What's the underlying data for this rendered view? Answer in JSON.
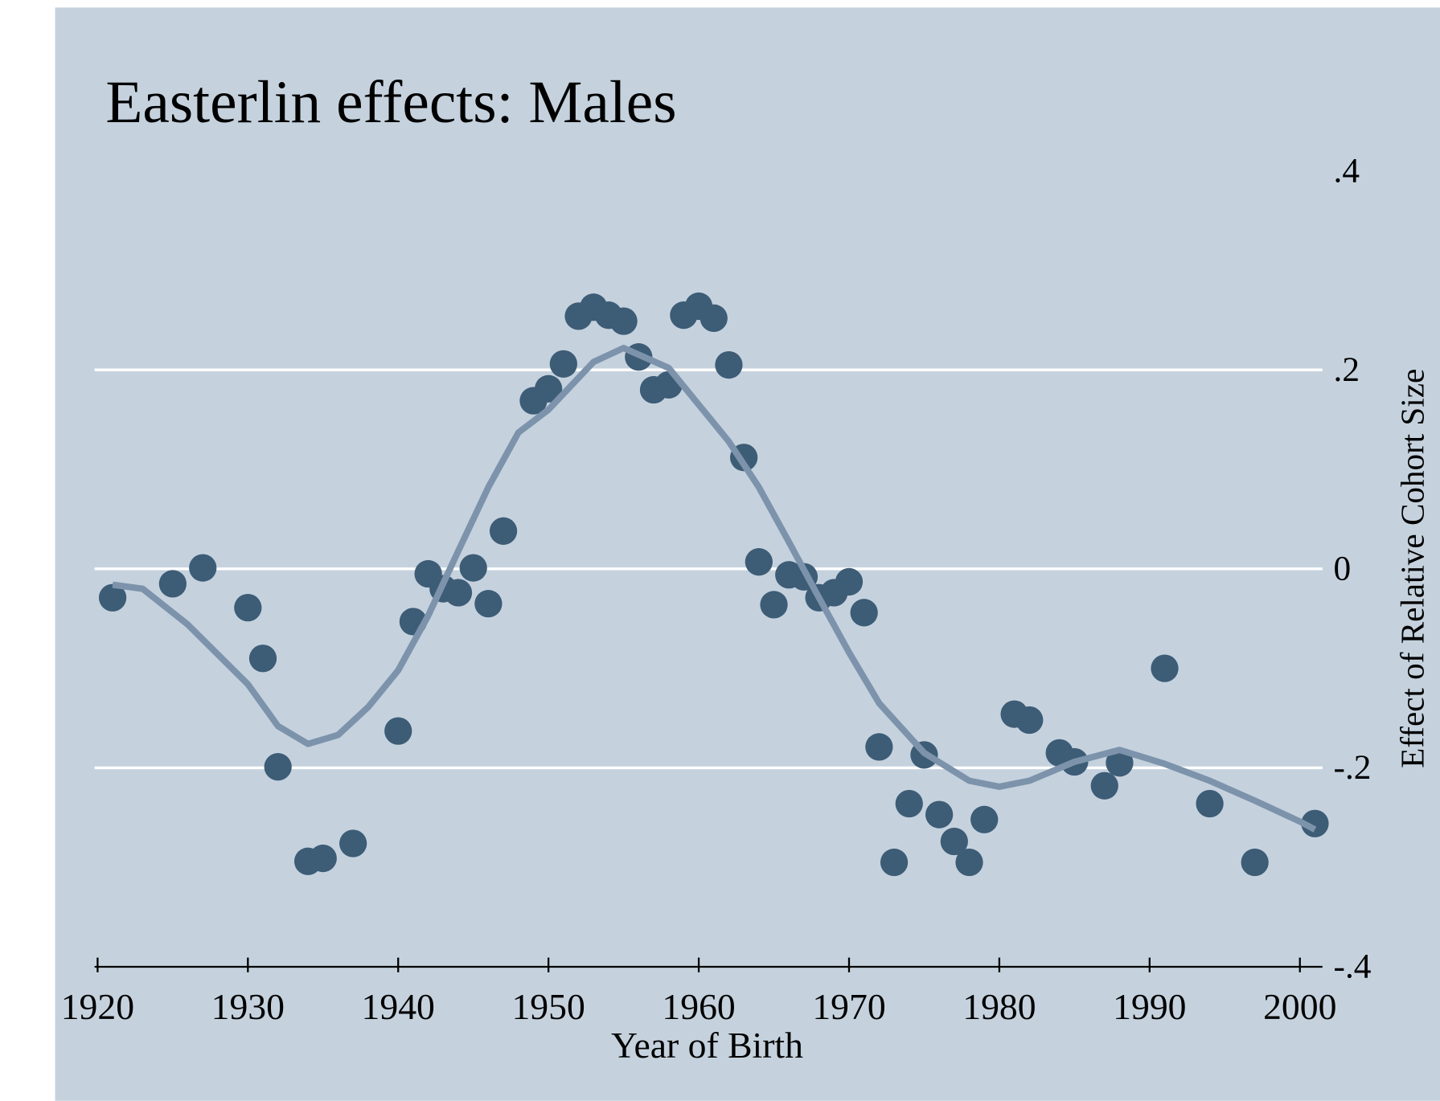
{
  "chart_data": {
    "type": "scatter",
    "title": "Easterlin effects: Males",
    "x_label": "Year of Birth",
    "y_label": "Effect of Relative Cohort Size",
    "xlim": [
      1919.8,
      2001.5
    ],
    "ylim": [
      -0.4,
      0.4
    ],
    "xticks": [
      1920,
      1930,
      1940,
      1950,
      1960,
      1970,
      1980,
      1990,
      2000
    ],
    "yticks": [
      {
        "value": 0.4,
        "label": ".4"
      },
      {
        "value": 0.2,
        "label": ".2"
      },
      0,
      {
        "value": -0.2,
        "label": "-.2"
      },
      {
        "value": -0.4,
        "label": "-.4"
      }
    ],
    "grid": true,
    "series": [
      {
        "type": "scatter",
        "color": "#3d5c76",
        "x": [
          1921,
          1925,
          1927,
          1930,
          1931,
          1932,
          1934,
          1935,
          1937,
          1940,
          1941,
          1942,
          1943,
          1944,
          1945,
          1946,
          1947,
          1949,
          1950,
          1951,
          1952,
          1953,
          1954,
          1955,
          1956,
          1957,
          1958,
          1959,
          1960,
          1961,
          1962,
          1963,
          1964,
          1965,
          1966,
          1967,
          1968,
          1969,
          1970,
          1971,
          1972,
          1973,
          1974,
          1975,
          1976,
          1977,
          1978,
          1979,
          1981,
          1982,
          1984,
          1985,
          1987,
          1988,
          1991,
          1994,
          1997,
          2001
        ],
        "values": [
          -0.029,
          -0.015,
          0.001,
          -0.039,
          -0.09,
          -0.199,
          -0.294,
          -0.291,
          -0.276,
          -0.163,
          -0.053,
          -0.005,
          -0.02,
          -0.024,
          0.001,
          -0.035,
          0.038,
          0.169,
          0.181,
          0.206,
          0.254,
          0.263,
          0.255,
          0.249,
          0.213,
          0.18,
          0.185,
          0.255,
          0.264,
          0.252,
          0.205,
          0.112,
          0.007,
          -0.036,
          -0.006,
          -0.008,
          -0.029,
          -0.024,
          -0.013,
          -0.044,
          -0.179,
          -0.295,
          -0.236,
          -0.187,
          -0.247,
          -0.274,
          -0.295,
          -0.252,
          -0.146,
          -0.152,
          -0.185,
          -0.194,
          -0.218,
          -0.195,
          -0.1,
          -0.236,
          -0.295,
          -0.256
        ]
      },
      {
        "type": "line",
        "color": "#7c93ab",
        "x": [
          1921,
          1923,
          1926,
          1930,
          1932,
          1934,
          1936,
          1938,
          1940,
          1942,
          1944,
          1946,
          1948,
          1950,
          1953,
          1955,
          1958,
          1960,
          1962,
          1964,
          1966,
          1968,
          1970,
          1972,
          1975,
          1978,
          1980,
          1982,
          1985,
          1988,
          1991,
          1994,
          1997,
          2000,
          2001
        ],
        "values": [
          -0.016,
          -0.02,
          -0.056,
          -0.116,
          -0.158,
          -0.176,
          -0.167,
          -0.139,
          -0.102,
          -0.047,
          0.018,
          0.082,
          0.137,
          0.16,
          0.208,
          0.222,
          0.202,
          0.165,
          0.128,
          0.082,
          0.027,
          -0.029,
          -0.084,
          -0.135,
          -0.185,
          -0.213,
          -0.219,
          -0.213,
          -0.194,
          -0.182,
          -0.196,
          -0.213,
          -0.233,
          -0.254,
          -0.262
        ]
      }
    ]
  }
}
